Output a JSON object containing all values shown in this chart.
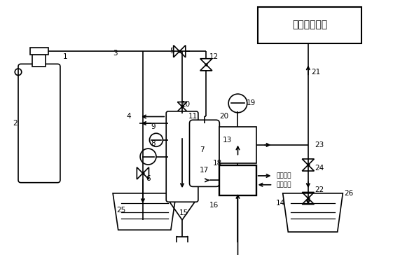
{
  "bg_color": "#ffffff",
  "line_color": "#000000",
  "box_title": "高压反应系统",
  "cold_water_out": "冷水出口",
  "cold_water_in": "冷水进口"
}
